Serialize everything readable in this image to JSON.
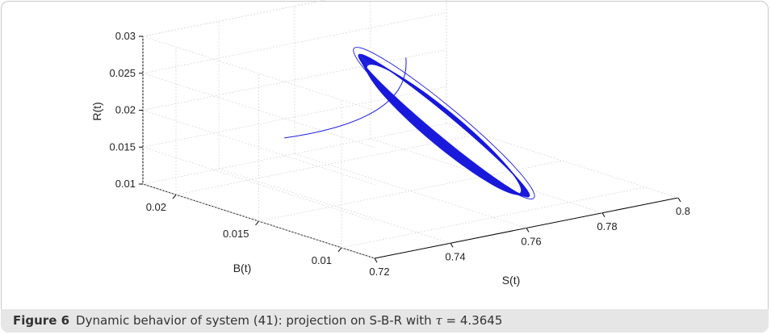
{
  "caption": {
    "label": "Figure 6",
    "text_before_tau": "Dynamic behavior of system (41): projection on S-B-R with",
    "tau_symbol": "τ",
    "text_after_tau": "= 4.3645"
  },
  "chart_data": {
    "type": "line",
    "projection": "3d",
    "title": "",
    "xlabel": "S(t)",
    "ylabel": "B(t)",
    "zlabel": "R(t)",
    "x_ticks": [
      "0.72",
      "0.74",
      "0.76",
      "0.78",
      "0.8"
    ],
    "y_ticks": [
      "0.01",
      "0.015",
      "0.02"
    ],
    "z_ticks": [
      "0.01",
      "0.015",
      "0.02",
      "0.025",
      "0.03"
    ],
    "xlim": [
      0.72,
      0.8
    ],
    "ylim": [
      0.008,
      0.022
    ],
    "zlim": [
      0.01,
      0.03
    ],
    "grid": true,
    "series": [
      {
        "color": "#1a1adc",
        "description_points": [
          {
            "S": 0.742,
            "B": 0.0185,
            "R": 0.0165
          },
          {
            "S": 0.77,
            "B": 0.0205,
            "R": 0.0235
          },
          {
            "S": 0.772,
            "B": 0.0105,
            "R": 0.011
          },
          {
            "S": 0.742,
            "B": 0.0185,
            "R": 0.0165
          }
        ]
      }
    ]
  }
}
